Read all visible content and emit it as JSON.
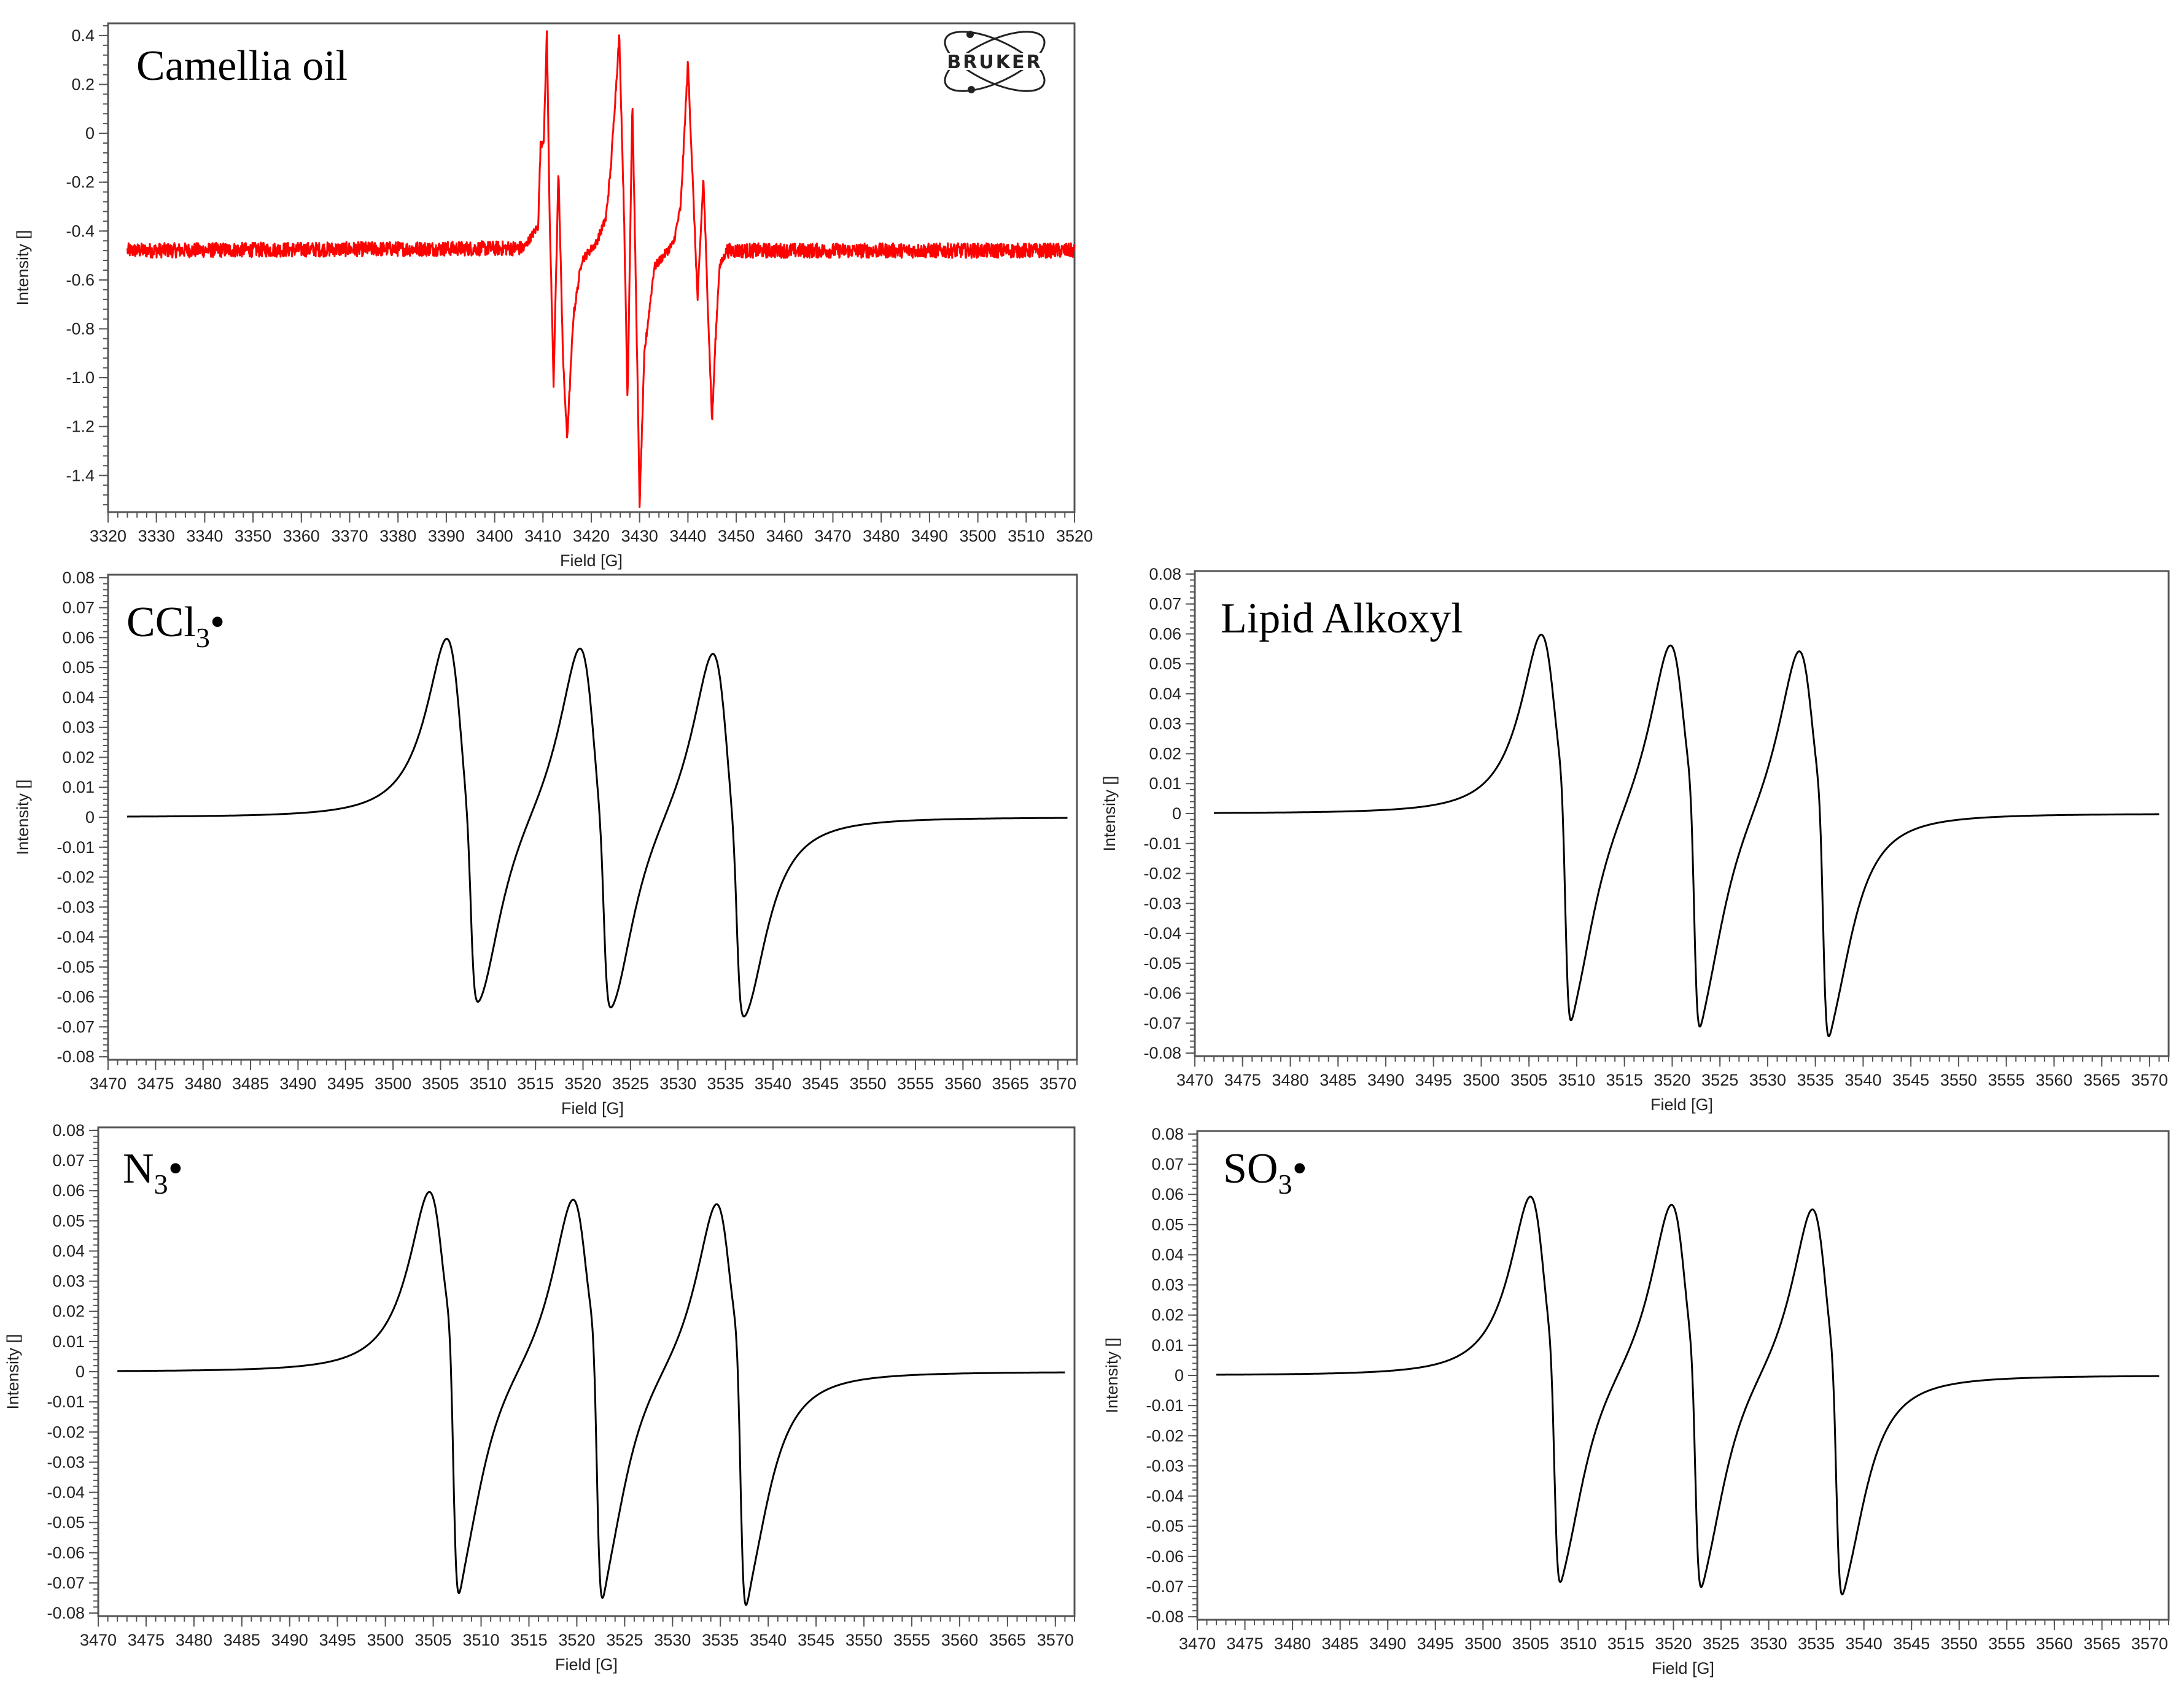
{
  "chart_data": [
    {
      "id": "camellia",
      "type": "line",
      "title": "Camellia oil",
      "xlabel": "Field [G]",
      "ylabel": "Intensity []",
      "xlim": [
        3320,
        3520
      ],
      "ylim": [
        -1.55,
        0.45
      ],
      "xticks": [
        3320,
        3330,
        3340,
        3350,
        3360,
        3370,
        3380,
        3390,
        3400,
        3410,
        3420,
        3430,
        3440,
        3450,
        3460,
        3470,
        3480,
        3490,
        3500,
        3510,
        3520
      ],
      "yticks": [
        0.4,
        0.2,
        0,
        -0.2,
        -0.4,
        -0.6,
        -0.8,
        -1.0,
        -1.2,
        -1.4
      ],
      "ytick_labels": [
        "0.4",
        "0.2",
        "0",
        "-0.2",
        "-0.4",
        "-0.6",
        "-0.8",
        "-1.0",
        "-1.2",
        "-1.4"
      ],
      "color": "#ff0000",
      "logo": "BRUKER",
      "series": [
        {
          "baseline": -0.48,
          "noise": 0.03,
          "x_start": 3324,
          "x_end": 3520,
          "points": [
            [
              3324,
              -0.48
            ],
            [
              3406,
              -0.47
            ],
            [
              3409,
              -0.38
            ],
            [
              3409.5,
              -0.05
            ],
            [
              3410.2,
              -0.02
            ],
            [
              3410.8,
              0.42
            ],
            [
              3411.4,
              -0.35
            ],
            [
              3412.2,
              -1.03
            ],
            [
              3413.2,
              -0.15
            ],
            [
              3414.2,
              -0.95
            ],
            [
              3415,
              -1.25
            ],
            [
              3416.3,
              -0.75
            ],
            [
              3418,
              -0.52
            ],
            [
              3421,
              -0.45
            ],
            [
              3423,
              -0.35
            ],
            [
              3424,
              -0.15
            ],
            [
              3425.8,
              0.4
            ],
            [
              3426.8,
              -0.35
            ],
            [
              3427.5,
              -1.1
            ],
            [
              3428.5,
              0.13
            ],
            [
              3429.3,
              -0.7
            ],
            [
              3430,
              -1.52
            ],
            [
              3431,
              -0.9
            ],
            [
              3433,
              -0.55
            ],
            [
              3437,
              -0.45
            ],
            [
              3438.5,
              -0.3
            ],
            [
              3440,
              0.29
            ],
            [
              3441,
              -0.2
            ],
            [
              3442,
              -0.68
            ],
            [
              3443.2,
              -0.18
            ],
            [
              3444.2,
              -0.75
            ],
            [
              3445,
              -1.18
            ],
            [
              3445.7,
              -0.85
            ],
            [
              3446.5,
              -0.55
            ],
            [
              3448,
              -0.48
            ],
            [
              3520,
              -0.48
            ]
          ]
        }
      ]
    },
    {
      "id": "ccl3",
      "type": "line",
      "title": "CCl3•",
      "title_main": "CCl",
      "title_sub": "3",
      "title_dot": "•",
      "xlabel": "Field [G]",
      "ylabel": "Intensity []",
      "xlim": [
        3470,
        3572
      ],
      "ylim": [
        -0.081,
        0.081
      ],
      "xticks": [
        3470,
        3475,
        3480,
        3485,
        3490,
        3495,
        3500,
        3505,
        3510,
        3515,
        3520,
        3525,
        3530,
        3535,
        3540,
        3545,
        3550,
        3555,
        3560,
        3565,
        3570
      ],
      "yticks": [
        0.08,
        0.07,
        0.06,
        0.05,
        0.04,
        0.03,
        0.02,
        0.01,
        0,
        -0.01,
        -0.02,
        -0.03,
        -0.04,
        -0.05,
        -0.06,
        -0.07,
        -0.08
      ],
      "ytick_labels": [
        "0.08",
        "0.07",
        "0.06",
        "0.05",
        "0.04",
        "0.03",
        "0.02",
        "0.01",
        "0",
        "-0.01",
        "-0.02",
        "-0.03",
        "-0.04",
        "-0.05",
        "-0.06",
        "-0.07",
        "-0.08"
      ],
      "color": "#000000",
      "series": [
        {
          "x_start": 3472,
          "x_end": 3571,
          "lines": [
            {
              "center": 3507.5,
              "amp": 0.078,
              "width": 1.9
            },
            {
              "center": 3521.5,
              "amp": 0.078,
              "width": 1.9
            },
            {
              "center": 3535.5,
              "amp": 0.078,
              "width": 1.9
            },
            {
              "center": 3508.2,
              "amp": 0.018,
              "width": 0.45
            },
            {
              "center": 3522.2,
              "amp": 0.018,
              "width": 0.45
            },
            {
              "center": 3536.2,
              "amp": 0.018,
              "width": 0.45
            }
          ]
        }
      ]
    },
    {
      "id": "alkoxyl",
      "type": "line",
      "title": "Lipid Alkoxyl",
      "xlabel": "Field [G]",
      "ylabel": "Intensity []",
      "xlim": [
        3470,
        3572
      ],
      "ylim": [
        -0.081,
        0.081
      ],
      "xticks": [
        3470,
        3475,
        3480,
        3485,
        3490,
        3495,
        3500,
        3505,
        3510,
        3515,
        3520,
        3525,
        3530,
        3535,
        3540,
        3545,
        3550,
        3555,
        3560,
        3565,
        3570
      ],
      "yticks": [
        0.08,
        0.07,
        0.06,
        0.05,
        0.04,
        0.03,
        0.02,
        0.01,
        0,
        -0.01,
        -0.02,
        -0.03,
        -0.04,
        -0.05,
        -0.06,
        -0.07,
        -0.08
      ],
      "ytick_labels": [
        "0.08",
        "0.07",
        "0.06",
        "0.05",
        "0.04",
        "0.03",
        "0.02",
        "0.01",
        "0",
        "-0.01",
        "-0.02",
        "-0.03",
        "-0.04",
        "-0.05",
        "-0.06",
        "-0.07",
        "-0.08"
      ],
      "color": "#000000",
      "series": [
        {
          "x_start": 3472,
          "x_end": 3571,
          "lines": [
            {
              "center": 3508.1,
              "amp": 0.077,
              "width": 1.9
            },
            {
              "center": 3521.6,
              "amp": 0.077,
              "width": 1.9
            },
            {
              "center": 3535.1,
              "amp": 0.077,
              "width": 1.9
            },
            {
              "center": 3508.8,
              "amp": 0.031,
              "width": 0.45
            },
            {
              "center": 3522.3,
              "amp": 0.031,
              "width": 0.45
            },
            {
              "center": 3535.8,
              "amp": 0.031,
              "width": 0.45
            }
          ]
        }
      ]
    },
    {
      "id": "n3",
      "type": "line",
      "title": "N3•",
      "title_main": "N",
      "title_sub": "3",
      "title_dot": "•",
      "xlabel": "Field [G]",
      "ylabel": "Intensity []",
      "xlim": [
        3470,
        3572
      ],
      "ylim": [
        -0.081,
        0.081
      ],
      "xticks": [
        3470,
        3475,
        3480,
        3485,
        3490,
        3495,
        3500,
        3505,
        3510,
        3515,
        3520,
        3525,
        3530,
        3535,
        3540,
        3545,
        3550,
        3555,
        3560,
        3565,
        3570
      ],
      "yticks": [
        0.08,
        0.07,
        0.06,
        0.05,
        0.04,
        0.03,
        0.02,
        0.01,
        0,
        -0.01,
        -0.02,
        -0.03,
        -0.04,
        -0.05,
        -0.06,
        -0.07,
        -0.08
      ],
      "ytick_labels": [
        "0.08",
        "0.07",
        "0.06",
        "0.05",
        "0.04",
        "0.03",
        "0.02",
        "0.01",
        "0",
        "-0.01",
        "-0.02",
        "-0.03",
        "-0.04",
        "-0.05",
        "-0.06",
        "-0.07",
        "-0.08"
      ],
      "color": "#000000",
      "series": [
        {
          "x_start": 3472,
          "x_end": 3571,
          "lines": [
            {
              "center": 3506.4,
              "amp": 0.077,
              "width": 1.9
            },
            {
              "center": 3521.4,
              "amp": 0.077,
              "width": 1.9
            },
            {
              "center": 3536.4,
              "amp": 0.077,
              "width": 1.9
            },
            {
              "center": 3507.1,
              "amp": 0.036,
              "width": 0.45
            },
            {
              "center": 3522.1,
              "amp": 0.036,
              "width": 0.45
            },
            {
              "center": 3537.1,
              "amp": 0.036,
              "width": 0.45
            }
          ]
        }
      ]
    },
    {
      "id": "so3",
      "type": "line",
      "title": "SO3•",
      "title_main": "SO",
      "title_sub": "3",
      "title_dot": "•",
      "xlabel": "Field [G]",
      "ylabel": "Intensity []",
      "xlim": [
        3470,
        3572
      ],
      "ylim": [
        -0.081,
        0.081
      ],
      "xticks": [
        3470,
        3475,
        3480,
        3485,
        3490,
        3495,
        3500,
        3505,
        3510,
        3515,
        3520,
        3525,
        3530,
        3535,
        3540,
        3545,
        3550,
        3555,
        3560,
        3565,
        3570
      ],
      "yticks": [
        0.08,
        0.07,
        0.06,
        0.05,
        0.04,
        0.03,
        0.02,
        0.01,
        0,
        -0.01,
        -0.02,
        -0.03,
        -0.04,
        -0.05,
        -0.06,
        -0.07,
        -0.08
      ],
      "ytick_labels": [
        "0.08",
        "0.07",
        "0.06",
        "0.05",
        "0.04",
        "0.03",
        "0.02",
        "0.01",
        "0",
        "-0.01",
        "-0.02",
        "-0.03",
        "-0.04",
        "-0.05",
        "-0.06",
        "-0.07",
        "-0.08"
      ],
      "color": "#000000",
      "series": [
        {
          "x_start": 3472,
          "x_end": 3571,
          "lines": [
            {
              "center": 3506.8,
              "amp": 0.077,
              "width": 1.9
            },
            {
              "center": 3521.6,
              "amp": 0.077,
              "width": 1.9
            },
            {
              "center": 3536.4,
              "amp": 0.077,
              "width": 1.9
            },
            {
              "center": 3507.5,
              "amp": 0.029,
              "width": 0.45
            },
            {
              "center": 3522.3,
              "amp": 0.029,
              "width": 0.45
            },
            {
              "center": 3537.1,
              "amp": 0.029,
              "width": 0.45
            }
          ]
        }
      ]
    }
  ]
}
